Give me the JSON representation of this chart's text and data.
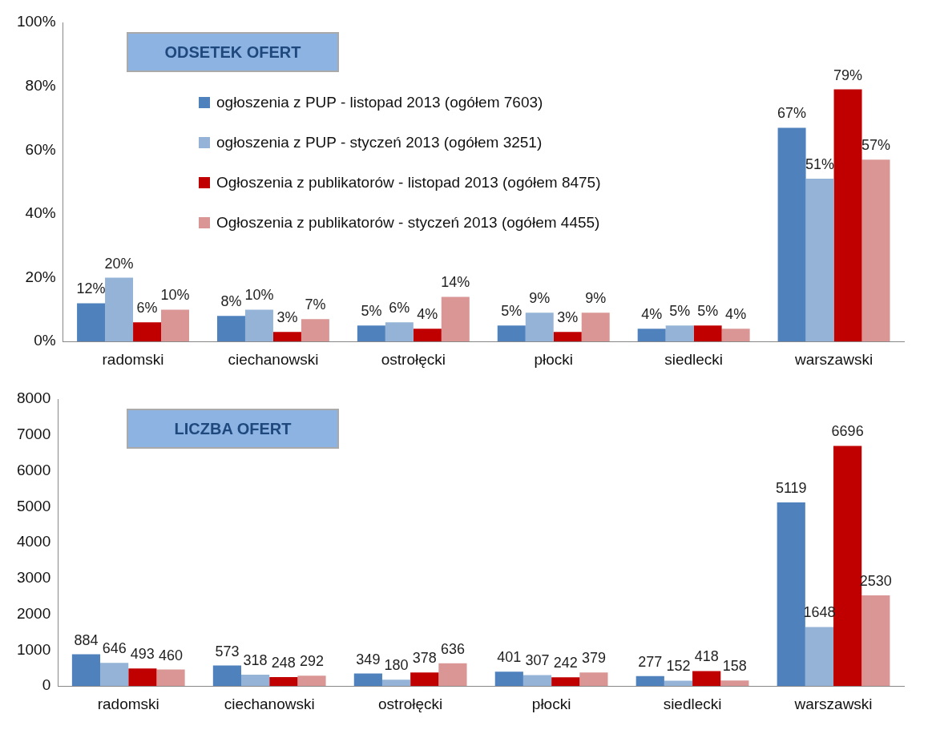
{
  "chart_data": [
    {
      "type": "bar",
      "title": "ODSETEK OFERT",
      "categories": [
        "radomski",
        "ciechanowski",
        "ostrołęcki",
        "płocki",
        "siedlecki",
        "warszawski"
      ],
      "ylim": [
        0,
        100
      ],
      "yticks": [
        {
          "value": 0,
          "label": "0%"
        },
        {
          "value": 20,
          "label": "20%"
        },
        {
          "value": 40,
          "label": "40%"
        },
        {
          "value": 60,
          "label": "60%"
        },
        {
          "value": 80,
          "label": "80%"
        },
        {
          "value": 100,
          "label": "100%"
        }
      ],
      "grid": false,
      "legend": "top",
      "series": [
        {
          "name": "ogłoszenia z PUP - listopad 2013 (ogółem 7603)",
          "color": "#4f81bd",
          "values": [
            12,
            8,
            5,
            5,
            4,
            67
          ],
          "value_labels": [
            "12%",
            "8%",
            "5%",
            "5%",
            "4%",
            "67%"
          ]
        },
        {
          "name": "ogłoszenia z PUP - styczeń 2013 (ogółem 3251)",
          "color": "#95b3d7",
          "values": [
            20,
            10,
            6,
            9,
            5,
            51
          ],
          "value_labels": [
            "20%",
            "10%",
            "6%",
            "9%",
            "5%",
            "51%"
          ]
        },
        {
          "name": "Ogłoszenia z publikatorów - listopad 2013 (ogółem 8475)",
          "color": "#c00000",
          "values": [
            6,
            3,
            4,
            3,
            5,
            79
          ],
          "value_labels": [
            "6%",
            "3%",
            "4%",
            "3%",
            "5%",
            "79%"
          ]
        },
        {
          "name": "Ogłoszenia z publikatorów - styczeń 2013 (ogółem 4455)",
          "color": "#d99694",
          "values": [
            10,
            7,
            14,
            9,
            4,
            57
          ],
          "value_labels": [
            "10%",
            "7%",
            "14%",
            "9%",
            "4%",
            "57%"
          ]
        }
      ]
    },
    {
      "type": "bar",
      "title": "LICZBA OFERT",
      "categories": [
        "radomski",
        "ciechanowski",
        "ostrołęcki",
        "płocki",
        "siedlecki",
        "warszawski"
      ],
      "ylim": [
        0,
        8000
      ],
      "yticks": [
        0,
        1000,
        2000,
        3000,
        4000,
        5000,
        6000,
        7000,
        8000
      ],
      "grid": false,
      "data_labels": true,
      "series": [
        {
          "color": "#4f81bd",
          "values": [
            884,
            573,
            349,
            401,
            277,
            5119
          ]
        },
        {
          "color": "#95b3d7",
          "values": [
            646,
            318,
            180,
            307,
            152,
            1648
          ]
        },
        {
          "color": "#c00000",
          "values": [
            493,
            248,
            378,
            242,
            418,
            6696
          ]
        },
        {
          "color": "#d99694",
          "values": [
            460,
            292,
            636,
            379,
            158,
            2530
          ]
        }
      ]
    }
  ]
}
